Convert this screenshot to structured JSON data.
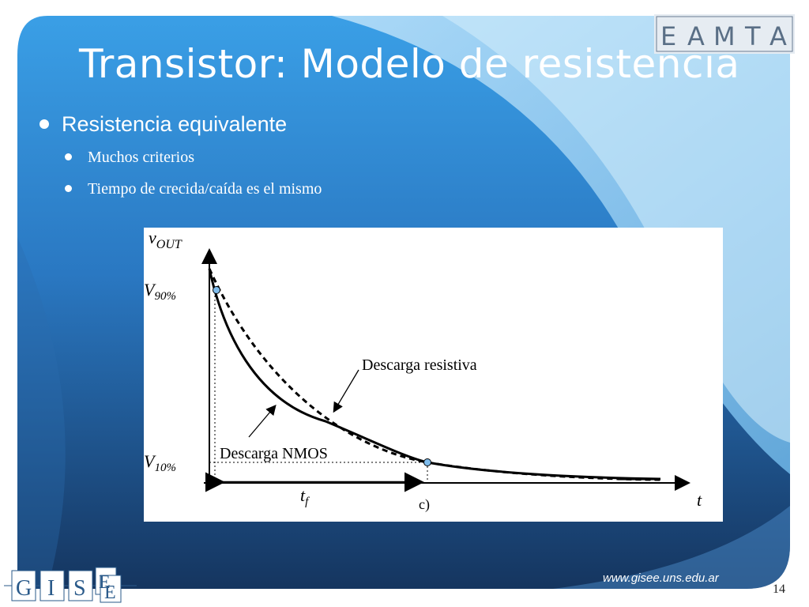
{
  "slide": {
    "title": "Transistor: Modelo de resistencia",
    "bullet_main": "Resistencia equivalente",
    "bullets_sub": [
      "Muchos criterios",
      "Tiempo de crecida/caída es el mismo"
    ],
    "footer_url": "www.gisee.uns.edu.ar",
    "page_number": "14"
  },
  "logos": {
    "top_right": [
      "E",
      "A",
      "M",
      "T",
      "A"
    ],
    "bottom_left": [
      "G",
      "I",
      "S",
      "E",
      "E"
    ]
  },
  "figure": {
    "y_axis_label": "v",
    "y_axis_label_sub": "OUT",
    "v90_label": "V",
    "v90_sub": "90%",
    "v10_label": "V",
    "v10_sub": "10%",
    "x_axis_label": "t",
    "tf_label": "t",
    "tf_sub": "f",
    "resistive_label": "Descarga resistiva",
    "nmos_label": "Descarga NMOS",
    "panel_label": "c)"
  },
  "colors": {
    "background_dark": "#1a3d6b",
    "background_light": "#3a9be0",
    "accent_circle": "#7fbcec"
  }
}
